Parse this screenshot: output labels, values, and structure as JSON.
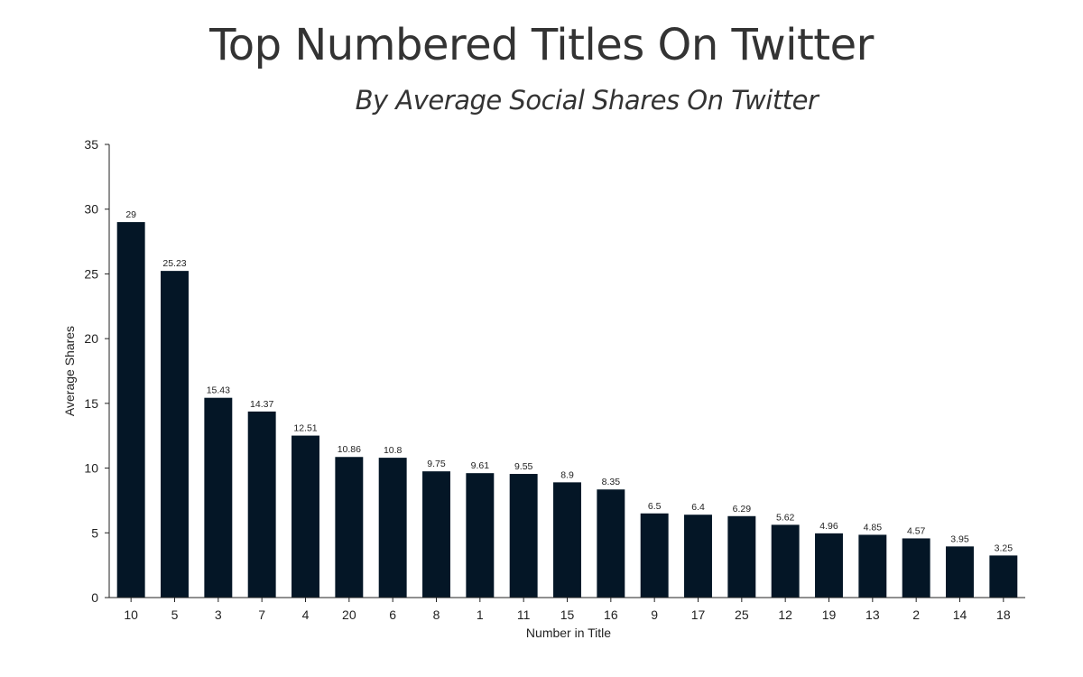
{
  "chart_data": {
    "type": "bar",
    "title": "Top Numbered Titles On Twitter",
    "subtitle": "By Average Social Shares On Twitter",
    "xlabel": "Number in Title",
    "ylabel": "Average Shares",
    "ylim": [
      0,
      35
    ],
    "yticks": [
      "0",
      "5",
      "10",
      "15",
      "20",
      "25",
      "30",
      "35"
    ],
    "categories": [
      "10",
      "5",
      "3",
      "7",
      "4",
      "20",
      "6",
      "8",
      "1",
      "11",
      "15",
      "16",
      "9",
      "17",
      "25",
      "12",
      "19",
      "13",
      "2",
      "14",
      "18"
    ],
    "values": [
      29,
      25.23,
      15.43,
      14.37,
      12.51,
      10.86,
      10.8,
      9.75,
      9.61,
      9.55,
      8.9,
      8.35,
      6.5,
      6.4,
      6.29,
      5.62,
      4.96,
      4.85,
      4.57,
      3.95,
      3.25
    ],
    "value_labels": [
      "29",
      "25.23",
      "15.43",
      "14.37",
      "12.51",
      "10.86",
      "10.8",
      "9.75",
      "9.61",
      "9.55",
      "8.9",
      "8.35",
      "6.5",
      "6.4",
      "6.29",
      "5.62",
      "4.96",
      "4.85",
      "4.57",
      "3.95",
      "3.25"
    ],
    "bar_color": "#041626",
    "axis_color": "#222222",
    "grid": false,
    "legend": "none"
  }
}
